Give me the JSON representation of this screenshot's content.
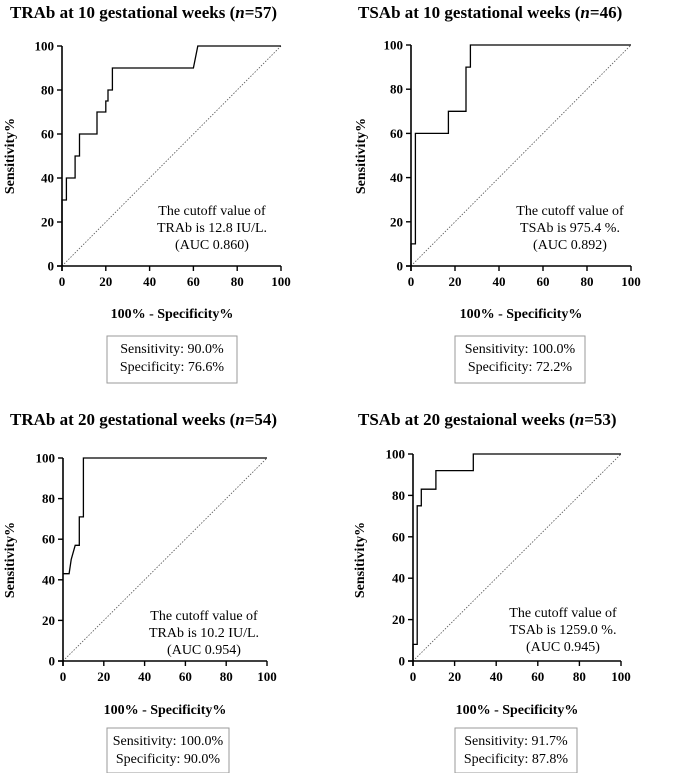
{
  "chart_data": [
    {
      "type": "line",
      "title": "TRAb at 10 gestational weeks (n=57)",
      "title_parts": [
        "TRAb at 10 gestational weeks (",
        "n",
        "=57)"
      ],
      "xlabel": "100% - Specificity%",
      "ylabel": "Sensitivity%",
      "xlim": [
        0,
        100
      ],
      "ylim": [
        0,
        100
      ],
      "xticks": [
        0,
        20,
        40,
        60,
        80,
        100
      ],
      "yticks": [
        0,
        20,
        40,
        60,
        80,
        100
      ],
      "annotation": [
        "The cutoff value of",
        "TRAb is 12.8 IU/L.",
        "(AUC 0.860)"
      ],
      "summary": [
        "Sensitivity: 90.0%",
        "Specificity: 76.6%"
      ],
      "roc": [
        [
          0,
          0
        ],
        [
          0,
          30
        ],
        [
          2,
          30
        ],
        [
          2,
          40
        ],
        [
          6,
          40
        ],
        [
          6,
          50
        ],
        [
          8,
          50
        ],
        [
          8,
          60
        ],
        [
          16,
          60
        ],
        [
          16,
          70
        ],
        [
          20,
          70
        ],
        [
          20,
          75
        ],
        [
          21,
          75
        ],
        [
          21,
          80
        ],
        [
          23,
          80
        ],
        [
          23,
          90
        ],
        [
          60,
          90
        ],
        [
          62,
          100
        ],
        [
          100,
          100
        ]
      ]
    },
    {
      "type": "line",
      "title": "TSAb at 10 gestational weeks (n=46)",
      "title_parts": [
        "TSAb at 10 gestational weeks (",
        "n",
        "=46)"
      ],
      "xlabel": "100% - Specificity%",
      "ylabel": "Sensitivity%",
      "xlim": [
        0,
        100
      ],
      "ylim": [
        0,
        100
      ],
      "xticks": [
        0,
        20,
        40,
        60,
        80,
        100
      ],
      "yticks": [
        0,
        20,
        40,
        60,
        80,
        100
      ],
      "annotation": [
        "The cutoff value of",
        "TSAb is 975.4 %.",
        "(AUC 0.892)"
      ],
      "summary": [
        "Sensitivity: 100.0%",
        "Specificity: 72.2%"
      ],
      "roc": [
        [
          0,
          0
        ],
        [
          0,
          10
        ],
        [
          2,
          10
        ],
        [
          2,
          60
        ],
        [
          17,
          60
        ],
        [
          17,
          70
        ],
        [
          25,
          70
        ],
        [
          25,
          90
        ],
        [
          27,
          90
        ],
        [
          27,
          100
        ],
        [
          100,
          100
        ]
      ]
    },
    {
      "type": "line",
      "title": "TRAb at 20 gestational weeks (n=54)",
      "title_parts": [
        "TRAb at 20 gestational weeks (",
        "n",
        "=54)"
      ],
      "xlabel": "100% - Specificity%",
      "ylabel": "Sensitivity%",
      "xlim": [
        0,
        100
      ],
      "ylim": [
        0,
        100
      ],
      "xticks": [
        0,
        20,
        40,
        60,
        80,
        100
      ],
      "yticks": [
        0,
        20,
        40,
        60,
        80,
        100
      ],
      "annotation": [
        "The cutoff value of",
        "TRAb is 10.2 IU/L.",
        "(AUC 0.954)"
      ],
      "summary": [
        "Sensitivity: 100.0%",
        "Specificity: 90.0%"
      ],
      "roc": [
        [
          0,
          43
        ],
        [
          3,
          43
        ],
        [
          4,
          50
        ],
        [
          6,
          57
        ],
        [
          8,
          57
        ],
        [
          8,
          71
        ],
        [
          10,
          71
        ],
        [
          10,
          100
        ],
        [
          100,
          100
        ]
      ]
    },
    {
      "type": "line",
      "title": "TSAb at 20 gestaional weeks (n=53)",
      "title_parts": [
        "TSAb at 20 gestaional weeks (",
        "n",
        "=53)"
      ],
      "xlabel": "100% - Specificity%",
      "ylabel": "Sensitivity%",
      "xlim": [
        0,
        100
      ],
      "ylim": [
        0,
        100
      ],
      "xticks": [
        0,
        20,
        40,
        60,
        80,
        100
      ],
      "yticks": [
        0,
        20,
        40,
        60,
        80,
        100
      ],
      "annotation": [
        "The cutoff value of",
        "TSAb is 1259.0 %.",
        "(AUC 0.945)"
      ],
      "summary": [
        "Sensitivity: 91.7%",
        "Specificity: 87.8%"
      ],
      "roc": [
        [
          0,
          0
        ],
        [
          0,
          8
        ],
        [
          2,
          8
        ],
        [
          2,
          75
        ],
        [
          4,
          75
        ],
        [
          4,
          83
        ],
        [
          11,
          83
        ],
        [
          11,
          92
        ],
        [
          29,
          92
        ],
        [
          29,
          100
        ],
        [
          100,
          100
        ]
      ]
    }
  ]
}
